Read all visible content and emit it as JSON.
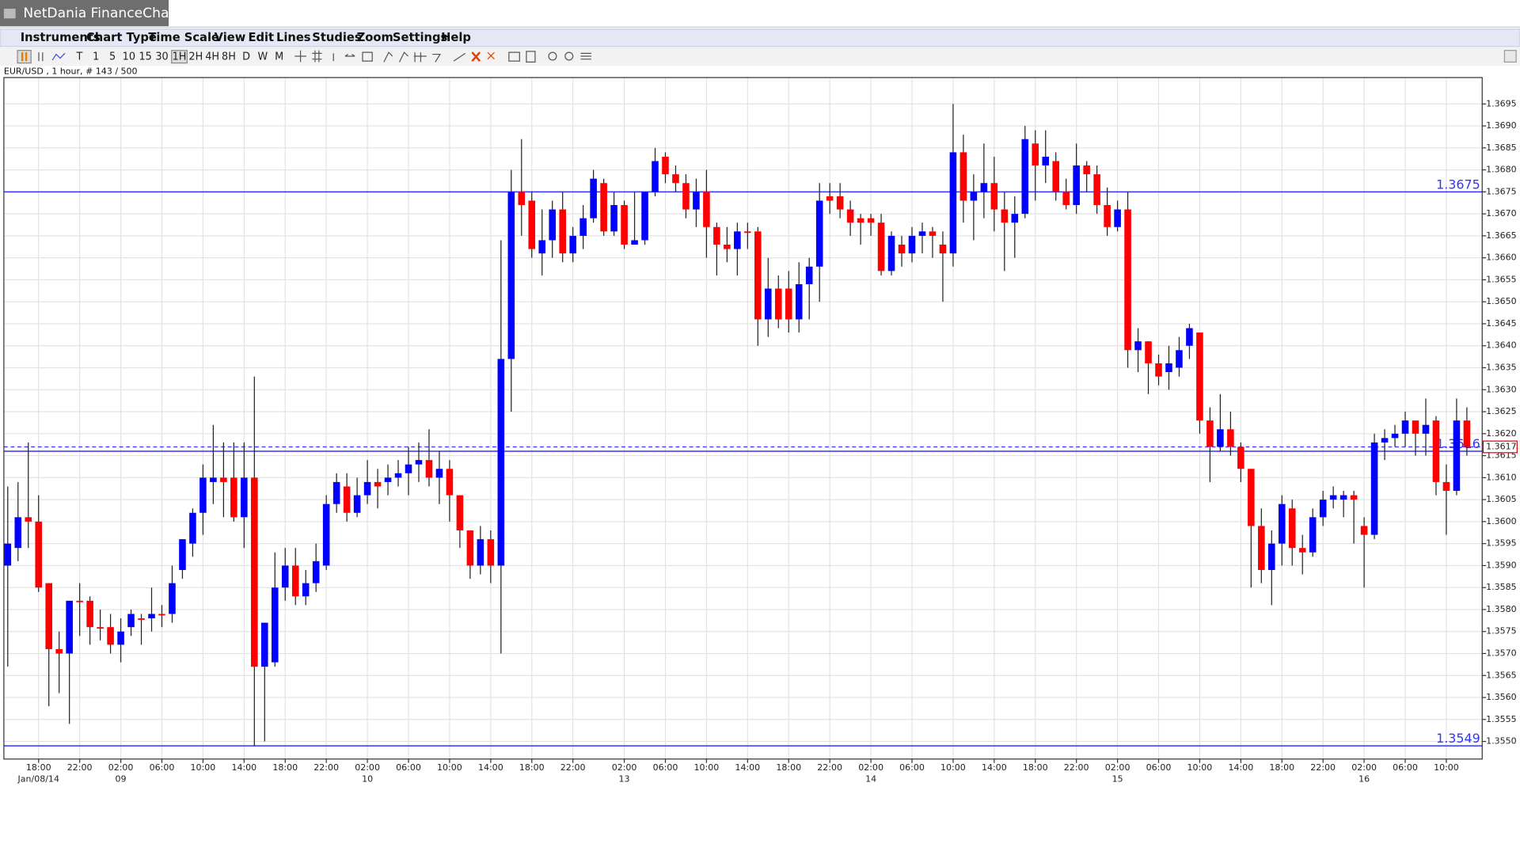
{
  "ui": {
    "app_title": "NetDania FinanceChart",
    "menu": [
      "Instruments",
      "Chart Type",
      "Time Scale",
      "View",
      "Edit",
      "Lines",
      "Studies",
      "Zoom",
      "Settings",
      "Help"
    ],
    "toolbar": [
      "T",
      "1",
      "5",
      "10",
      "15",
      "30",
      "1H",
      "2H",
      "4H",
      "8H",
      "D",
      "W",
      "M"
    ],
    "info": "EUR/USD , 1 hour, # 143 / 500"
  },
  "chart_data": {
    "type": "candlestick",
    "categories": [
      null,
      null,
      null,
      "18:00",
      null,
      null,
      null,
      "22:00",
      null,
      null,
      null,
      "02:00",
      null,
      null,
      null,
      "06:00",
      null,
      null,
      null,
      "10:00",
      null,
      null,
      null,
      "14:00",
      null,
      null,
      null,
      "18:00",
      null,
      null,
      null,
      "22:00",
      null,
      null,
      null,
      "02:00",
      null,
      null,
      null,
      "06:00",
      null,
      null,
      null,
      "10:00",
      null,
      null,
      null,
      "14:00",
      null,
      null,
      null,
      "18:00",
      null,
      null,
      null,
      "22:00",
      null,
      null,
      null,
      null,
      "02:00",
      null,
      null,
      null,
      "06:00",
      null,
      null,
      null,
      "10:00",
      null,
      null,
      null,
      "14:00",
      null,
      null,
      null,
      "18:00",
      null,
      null,
      null,
      "22:00",
      null,
      null,
      null,
      "02:00",
      null,
      null,
      null,
      "06:00",
      null,
      null,
      null,
      "10:00",
      null,
      null,
      null,
      "14:00",
      null,
      null,
      null,
      "18:00",
      null,
      null,
      null,
      "22:00",
      null,
      null,
      null,
      "02:00",
      null,
      null,
      null,
      "06:00",
      null,
      null,
      null,
      "10:00",
      null,
      null,
      null,
      "14:00",
      null,
      null,
      null,
      "18:00",
      null,
      null,
      null,
      "22:00",
      null,
      null,
      null,
      "02:00",
      null,
      null,
      null,
      "06:00",
      null,
      null,
      null,
      "10:00",
      null,
      null
    ],
    "date_labels": [
      null,
      null,
      null,
      "Jan/08/14",
      null,
      null,
      null,
      null,
      null,
      null,
      null,
      "09",
      null,
      null,
      null,
      null,
      null,
      null,
      null,
      null,
      null,
      null,
      null,
      null,
      null,
      null,
      null,
      null,
      null,
      null,
      null,
      null,
      null,
      null,
      null,
      "10",
      null,
      null,
      null,
      null,
      null,
      null,
      null,
      null,
      null,
      null,
      null,
      null,
      null,
      null,
      null,
      null,
      null,
      null,
      null,
      null,
      null,
      null,
      null,
      null,
      "13",
      null,
      null,
      null,
      null,
      null,
      null,
      null,
      null,
      null,
      null,
      null,
      null,
      null,
      null,
      null,
      null,
      null,
      null,
      null,
      null,
      null,
      null,
      null,
      "14",
      null,
      null,
      null,
      null,
      null,
      null,
      null,
      null,
      null,
      null,
      null,
      null,
      null,
      null,
      null,
      null,
      null,
      null,
      null,
      null,
      null,
      null,
      null,
      "15",
      null,
      null,
      null,
      null,
      null,
      null,
      null,
      null,
      null,
      null,
      null,
      null,
      null,
      null,
      null,
      null,
      null,
      null,
      null,
      null,
      null,
      null,
      null,
      "16",
      null,
      null,
      null,
      null,
      null,
      null,
      null,
      null,
      null,
      null
    ],
    "open": [
      1.359,
      1.3594,
      1.3601,
      1.36,
      1.3586,
      1.3571,
      1.357,
      1.3582,
      1.3582,
      1.3576,
      1.3576,
      1.3572,
      1.3576,
      1.3578,
      1.3578,
      1.3579,
      1.3579,
      1.3589,
      1.3595,
      1.3602,
      1.3609,
      1.361,
      1.361,
      1.3601,
      1.361,
      1.3567,
      1.3568,
      1.3585,
      1.359,
      1.3583,
      1.3586,
      1.359,
      1.3604,
      1.3608,
      1.3602,
      1.3606,
      1.3609,
      1.3609,
      1.361,
      1.3611,
      1.3613,
      1.3614,
      1.361,
      1.3612,
      1.3606,
      1.3598,
      1.359,
      1.3596,
      1.359,
      1.3637,
      1.3675,
      1.3673,
      1.3661,
      1.3664,
      1.3671,
      1.3661,
      1.3665,
      1.3669,
      1.3677,
      1.3666,
      1.3672,
      1.3663,
      1.3664,
      1.3675,
      1.3683,
      1.3679,
      1.3677,
      1.3671,
      1.3675,
      1.3667,
      1.3663,
      1.3662,
      1.3666,
      1.3666,
      1.3646,
      1.3653,
      1.3653,
      1.3646,
      1.3654,
      1.3658,
      1.3674,
      1.3674,
      1.3671,
      1.3669,
      1.3669,
      1.3668,
      1.3657,
      1.3663,
      1.3661,
      1.3665,
      1.3666,
      1.3663,
      1.3661,
      1.3684,
      1.3673,
      1.3675,
      1.3677,
      1.3671,
      1.3668,
      1.367,
      1.3686,
      1.3681,
      1.3682,
      1.3675,
      1.3672,
      1.3681,
      1.3679,
      1.3672,
      1.3667,
      1.3671,
      1.3639,
      1.3641,
      1.3636,
      1.3634,
      1.3635,
      1.364,
      1.3643,
      1.3623,
      1.3617,
      1.3621,
      1.3617,
      1.3612,
      1.3599,
      1.3589,
      1.3595,
      1.3603,
      1.3594,
      1.3593,
      1.3601,
      1.3605,
      1.3605,
      1.3606,
      1.3599,
      1.3597,
      1.3618,
      1.3619,
      1.362,
      1.3623,
      1.362,
      1.3623,
      1.3609,
      1.3607,
      1.3623
    ],
    "high": [
      1.3608,
      1.3609,
      1.3618,
      1.3606,
      1.3586,
      1.3575,
      1.3582,
      1.3586,
      1.3583,
      1.358,
      1.3579,
      1.3578,
      1.358,
      1.3579,
      1.3585,
      1.3581,
      1.359,
      1.3596,
      1.3603,
      1.3613,
      1.3622,
      1.3618,
      1.3618,
      1.3618,
      1.3633,
      1.3577,
      1.3593,
      1.3594,
      1.3594,
      1.3589,
      1.3595,
      1.3606,
      1.3611,
      1.3611,
      1.361,
      1.3614,
      1.3612,
      1.3613,
      1.3614,
      1.3617,
      1.3618,
      1.3621,
      1.3616,
      1.3614,
      1.3606,
      1.3598,
      1.3599,
      1.3598,
      1.3664,
      1.368,
      1.3687,
      1.3675,
      1.3671,
      1.3673,
      1.3675,
      1.3667,
      1.3672,
      1.368,
      1.3678,
      1.3675,
      1.3673,
      1.3675,
      1.3675,
      1.3685,
      1.3684,
      1.3681,
      1.3679,
      1.3678,
      1.368,
      1.3668,
      1.3667,
      1.3668,
      1.3668,
      1.3667,
      1.366,
      1.3656,
      1.3657,
      1.3659,
      1.366,
      1.3677,
      1.3677,
      1.3677,
      1.3673,
      1.367,
      1.367,
      1.367,
      1.3666,
      1.3665,
      1.3667,
      1.3668,
      1.3667,
      1.3666,
      1.3695,
      1.3688,
      1.3679,
      1.3686,
      1.3683,
      1.3675,
      1.3674,
      1.369,
      1.3689,
      1.3689,
      1.3684,
      1.3678,
      1.3686,
      1.3682,
      1.3681,
      1.3676,
      1.3673,
      1.3675,
      1.3644,
      1.3641,
      1.3638,
      1.364,
      1.3642,
      1.3645,
      1.3643,
      1.3626,
      1.3629,
      1.3625,
      1.3618,
      1.3612,
      1.3603,
      1.3598,
      1.3606,
      1.3605,
      1.3597,
      1.3603,
      1.3607,
      1.3608,
      1.3607,
      1.3607,
      1.3601,
      1.362,
      1.3621,
      1.3622,
      1.3625,
      1.3623,
      1.3628,
      1.3624,
      1.3613,
      1.3628,
      1.3626
    ],
    "low": [
      1.3567,
      1.3591,
      1.3594,
      1.3584,
      1.3558,
      1.3561,
      1.3554,
      1.3574,
      1.3572,
      1.3573,
      1.357,
      1.3568,
      1.3574,
      1.3572,
      1.3575,
      1.3576,
      1.3577,
      1.3587,
      1.3592,
      1.3597,
      1.3604,
      1.3601,
      1.36,
      1.3594,
      1.3549,
      1.355,
      1.3567,
      1.3582,
      1.3581,
      1.3581,
      1.3584,
      1.3589,
      1.3602,
      1.36,
      1.3601,
      1.3604,
      1.3603,
      1.3606,
      1.3608,
      1.3606,
      1.3609,
      1.3608,
      1.3604,
      1.36,
      1.3594,
      1.3587,
      1.3588,
      1.3586,
      1.357,
      1.3625,
      1.3665,
      1.366,
      1.3656,
      1.366,
      1.3659,
      1.3659,
      1.3662,
      1.3668,
      1.3665,
      1.3665,
      1.3662,
      1.3663,
      1.3663,
      1.3674,
      1.3677,
      1.3675,
      1.3669,
      1.3667,
      1.366,
      1.3656,
      1.3659,
      1.3656,
      1.3662,
      1.364,
      1.3642,
      1.3644,
      1.3643,
      1.3643,
      1.3646,
      1.365,
      1.367,
      1.3669,
      1.3665,
      1.3663,
      1.3665,
      1.3656,
      1.3656,
      1.3658,
      1.3659,
      1.3661,
      1.366,
      1.365,
      1.3658,
      1.3668,
      1.3664,
      1.3669,
      1.3666,
      1.3657,
      1.366,
      1.3669,
      1.3673,
      1.3677,
      1.3673,
      1.3671,
      1.367,
      1.3675,
      1.367,
      1.3665,
      1.3666,
      1.3635,
      1.3634,
      1.3629,
      1.3631,
      1.363,
      1.3633,
      1.3637,
      1.362,
      1.3609,
      1.3616,
      1.3615,
      1.3609,
      1.3585,
      1.3586,
      1.3581,
      1.359,
      1.359,
      1.3588,
      1.3592,
      1.3599,
      1.3603,
      1.3601,
      1.3595,
      1.3585,
      1.3596,
      1.3614,
      1.3617,
      1.3617,
      1.3615,
      1.3615,
      1.3606,
      1.3597,
      1.3606,
      1.3615
    ],
    "close": [
      1.3595,
      1.3601,
      1.36,
      1.3585,
      1.3571,
      1.357,
      1.3582,
      1.3582,
      1.3576,
      1.3576,
      1.3572,
      1.3575,
      1.3579,
      1.3578,
      1.3579,
      1.3579,
      1.3586,
      1.3596,
      1.3602,
      1.361,
      1.361,
      1.3609,
      1.3601,
      1.361,
      1.3567,
      1.3577,
      1.3585,
      1.359,
      1.3583,
      1.3586,
      1.3591,
      1.3604,
      1.3609,
      1.3602,
      1.3606,
      1.3609,
      1.3608,
      1.361,
      1.3611,
      1.3613,
      1.3614,
      1.361,
      1.3612,
      1.3606,
      1.3598,
      1.359,
      1.3596,
      1.359,
      1.3637,
      1.3675,
      1.3672,
      1.3662,
      1.3664,
      1.3671,
      1.3661,
      1.3665,
      1.3669,
      1.3678,
      1.3666,
      1.3672,
      1.3663,
      1.3664,
      1.3675,
      1.3682,
      1.3679,
      1.3677,
      1.3671,
      1.3675,
      1.3667,
      1.3663,
      1.3662,
      1.3666,
      1.3666,
      1.3646,
      1.3653,
      1.3646,
      1.3646,
      1.3654,
      1.3658,
      1.3673,
      1.3673,
      1.3671,
      1.3668,
      1.3668,
      1.3668,
      1.3657,
      1.3665,
      1.3661,
      1.3665,
      1.3666,
      1.3665,
      1.3661,
      1.3684,
      1.3673,
      1.3675,
      1.3677,
      1.3671,
      1.3668,
      1.367,
      1.3687,
      1.3681,
      1.3683,
      1.3675,
      1.3672,
      1.3681,
      1.3679,
      1.3672,
      1.3667,
      1.3671,
      1.3639,
      1.3641,
      1.3636,
      1.3633,
      1.3636,
      1.3639,
      1.3644,
      1.3623,
      1.3617,
      1.3621,
      1.3617,
      1.3612,
      1.3599,
      1.3589,
      1.3595,
      1.3604,
      1.3594,
      1.3593,
      1.3601,
      1.3605,
      1.3606,
      1.3606,
      1.3605,
      1.3597,
      1.3618,
      1.3619,
      1.362,
      1.3623,
      1.362,
      1.3622,
      1.3609,
      1.3607,
      1.3623,
      1.3617
    ],
    "up_color": "#0000ff",
    "down_color": "#ff0000",
    "hlines": [
      1.3675,
      1.3616,
      1.3549
    ],
    "hline_color": "#3333ff",
    "last_price": 1.3617,
    "ylim": [
      1.3546,
      1.3701
    ],
    "yticks": [
      {
        "value": 1.355,
        "label": "1.3550"
      },
      1.3555,
      {
        "value": 1.356,
        "label": "1.3560"
      },
      1.3565,
      {
        "value": 1.357,
        "label": "1.3570"
      },
      1.3575,
      {
        "value": 1.358,
        "label": "1.3580"
      },
      1.3585,
      {
        "value": 1.359,
        "label": "1.3590"
      },
      1.3595,
      {
        "value": 1.36,
        "label": "1.3600"
      },
      1.3605,
      {
        "value": 1.361,
        "label": "1.3610"
      },
      1.3615,
      {
        "value": 1.362,
        "label": "1.3620"
      },
      1.3625,
      {
        "value": 1.363,
        "label": "1.3630"
      },
      1.3635,
      {
        "value": 1.364,
        "label": "1.3640"
      },
      1.3645,
      {
        "value": 1.365,
        "label": "1.3650"
      },
      1.3655,
      {
        "value": 1.366,
        "label": "1.3660"
      },
      1.3665,
      {
        "value": 1.367,
        "label": "1.3670"
      },
      1.3675,
      {
        "value": 1.368,
        "label": "1.3680"
      },
      1.3685,
      {
        "value": 1.369,
        "label": "1.3690"
      },
      1.3695
    ],
    "grid": true
  }
}
